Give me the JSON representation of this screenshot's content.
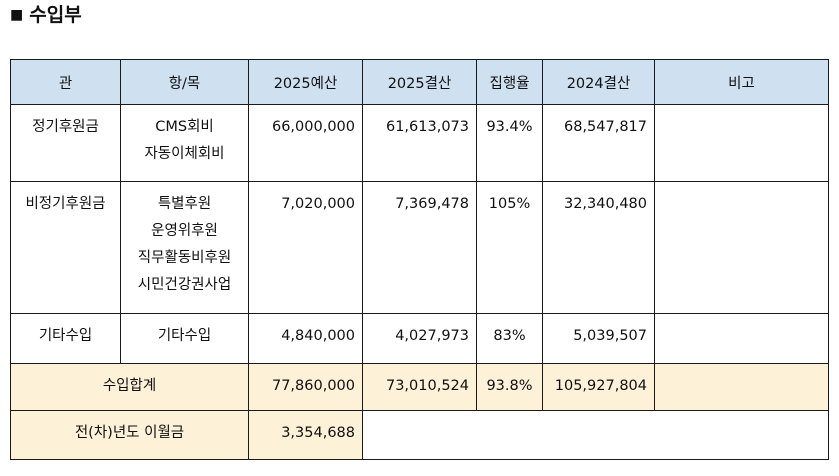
{
  "section": {
    "bullet": "■",
    "title": "수입부"
  },
  "table": {
    "headers": [
      "관",
      "항/목",
      "2025예산",
      "2025결산",
      "집행율",
      "2024결산",
      "비고"
    ],
    "rows": [
      {
        "gwan": "정기후원금",
        "items": [
          "CMS회비",
          "자동이체회비"
        ],
        "budget_2025": "66,000,000",
        "settle_2025": "61,613,073",
        "rate": "93.4%",
        "settle_2024": "68,547,817",
        "note": ""
      },
      {
        "gwan": "비정기후원금",
        "items": [
          "특별후원",
          "운영위후원",
          "직무활동비후원",
          "시민건강권사업"
        ],
        "budget_2025": "7,020,000",
        "settle_2025": "7,369,478",
        "rate": "105%",
        "settle_2024": "32,340,480",
        "note": ""
      },
      {
        "gwan": "기타수입",
        "items": [
          "기타수입"
        ],
        "budget_2025": "4,840,000",
        "settle_2025": "4,027,973",
        "rate": "83%",
        "settle_2024": "5,039,507",
        "note": ""
      }
    ],
    "total": {
      "label": "수입합계",
      "budget_2025": "77,860,000",
      "settle_2025": "73,010,524",
      "rate": "93.8%",
      "settle_2024": "105,927,804",
      "note": ""
    },
    "carryover": {
      "label": "전(차)년도 이월금",
      "value": "3,354,688"
    }
  },
  "colors": {
    "header_bg": "#cfe0f1",
    "total_bg": "#fdf1d7",
    "border": "#1a1a1a"
  }
}
